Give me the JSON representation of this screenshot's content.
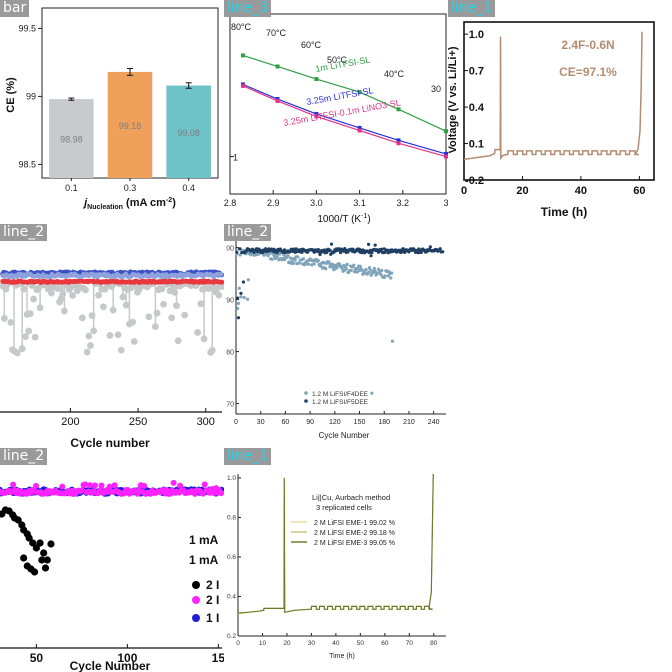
{
  "tags": [
    "bar",
    "line_3",
    "line_1",
    "line_2",
    "line_2",
    "line_2",
    "line_1"
  ],
  "chart_data": [
    {
      "type": "bar",
      "ylabel": "CE (%)",
      "xlabel_main": "j",
      "xlabel_sub": "Nucleation",
      "xlabel_unit": "(mA cm",
      "xlabel_exp": "-2",
      "xlabel_close": ")",
      "categories": [
        "0.1",
        "0.3",
        "0.4"
      ],
      "values": [
        98.98,
        99.18,
        99.08
      ],
      "value_labels": [
        "98.98",
        "99.18",
        "99.08"
      ],
      "errors": [
        0.008,
        0.025,
        0.02
      ],
      "colors": [
        "#c8cacd",
        "#efa05a",
        "#6ec3c9"
      ],
      "ylim": [
        98.4,
        99.65
      ],
      "yticks": [
        "98.5",
        "99",
        "99.5"
      ],
      "ytick_values": [
        98.5,
        99.0,
        99.5
      ]
    },
    {
      "type": "line",
      "xlabel": "1000/T (K",
      "xlabel_exp": "-1",
      "xlabel_close": ")",
      "xticks": [
        "2.8",
        "2.9",
        "3.0",
        "3.1",
        "3.2",
        "3"
      ],
      "xtick_values": [
        2.8,
        2.9,
        3.0,
        3.1,
        3.2,
        3.3
      ],
      "ytick_label": "1",
      "ylog": true,
      "ylim": [
        0.5,
        14
      ],
      "temperatures": [
        "80°C",
        "70°C",
        "60°C",
        "50°C",
        "40°C",
        "30"
      ],
      "series": [
        {
          "name": "1m LiTFSI-SL",
          "color": "#2ea043",
          "x": [
            2.83,
            2.91,
            3.0,
            3.1,
            3.19,
            3.3
          ],
          "y": [
            6.5,
            5.3,
            4.2,
            3.3,
            2.4,
            1.6
          ]
        },
        {
          "name": "3.25m LiTFSI-SL",
          "color": "#2b2fd6",
          "x": [
            2.83,
            2.91,
            3.0,
            3.1,
            3.19,
            3.3
          ],
          "y": [
            3.8,
            2.9,
            2.2,
            1.7,
            1.35,
            1.05
          ]
        },
        {
          "name": "3.25m LiTFSI-0.1m LiNO3-SL",
          "color": "#e0338a",
          "x": [
            2.83,
            2.91,
            3.0,
            3.1,
            3.19,
            3.3
          ],
          "y": [
            3.7,
            2.8,
            2.1,
            1.62,
            1.28,
            1.0
          ]
        }
      ]
    },
    {
      "type": "line",
      "ylabel": "Voltage (V vs. Li/Li+)",
      "xlabel": "Time (h)",
      "xticks": [
        "0",
        "20",
        "40",
        "60"
      ],
      "xtick_values": [
        0,
        20,
        40,
        60
      ],
      "yticks": [
        "-0.2",
        "0.1",
        "0.4",
        "0.7",
        "1.0"
      ],
      "ytick_values": [
        -0.2,
        0.1,
        0.4,
        0.7,
        1.0
      ],
      "xlim": [
        0,
        65
      ],
      "ylim": [
        -0.2,
        1.1
      ],
      "annotation_1": "2.4F-0.6N",
      "annotation_2": "CE=97.1%",
      "color": "#b48c72"
    },
    {
      "type": "scatter",
      "xlabel": "Cycle number",
      "xticks": [
        "200",
        "250",
        "300"
      ],
      "xtick_values": [
        200,
        250,
        300
      ],
      "xlim": [
        148,
        312
      ]
    },
    {
      "type": "scatter",
      "xlabel": "Cycle Number",
      "xticks": [
        "0",
        "30",
        "60",
        "90",
        "120",
        "150",
        "180",
        "210",
        "240"
      ],
      "xtick_values": [
        0,
        30,
        60,
        90,
        120,
        150,
        180,
        210,
        240
      ],
      "yticks": [
        "00",
        "90",
        "80",
        "70"
      ],
      "ytick_values": [
        100,
        90,
        80,
        70
      ],
      "xlim": [
        0,
        255
      ],
      "ylim": [
        68,
        103
      ],
      "legend": [
        "1.2 M LiFSI/F4DEE",
        "1.2 M LiFSI/F5DEE"
      ],
      "colors": [
        "#7fa3b8",
        "#1f3f63"
      ]
    },
    {
      "type": "scatter",
      "xlabel": "Cycle Number",
      "xticks": [
        "50",
        "100",
        "15"
      ],
      "xtick_values": [
        50,
        100,
        150
      ],
      "xlim": [
        30,
        152
      ],
      "legend_text": [
        "1 mA",
        "1 mA",
        "2 I",
        "2 I",
        "1 I"
      ],
      "legend_colors": [
        "#000000",
        "#ff22ff",
        "#1f1fd9"
      ]
    },
    {
      "type": "line",
      "xlabel": "Time (h)",
      "xticks": [
        "0",
        "10",
        "20",
        "30",
        "40",
        "50",
        "60",
        "70",
        "80"
      ],
      "xtick_values": [
        0,
        10,
        20,
        30,
        40,
        50,
        60,
        70,
        80
      ],
      "yticks": [
        "0.2",
        "0.4",
        "0.6",
        "0.8",
        "1.0"
      ],
      "ytick_values": [
        0.2,
        0.4,
        0.6,
        0.8,
        1.0
      ],
      "xlim": [
        0,
        85
      ],
      "ylim": [
        0.2,
        1.02
      ],
      "title_1": "Li||Cu, Aurbach method",
      "title_2": "3 replicated cells",
      "legend": [
        "2 M LiFSI EME-1  99.02 %",
        "2 M LiFSI EME-2  99.18 %",
        "2 M LiFSI EME-3  99.05 %"
      ],
      "colors": [
        "#ead9a2",
        "#c9c77b",
        "#6e7a2a"
      ]
    }
  ]
}
